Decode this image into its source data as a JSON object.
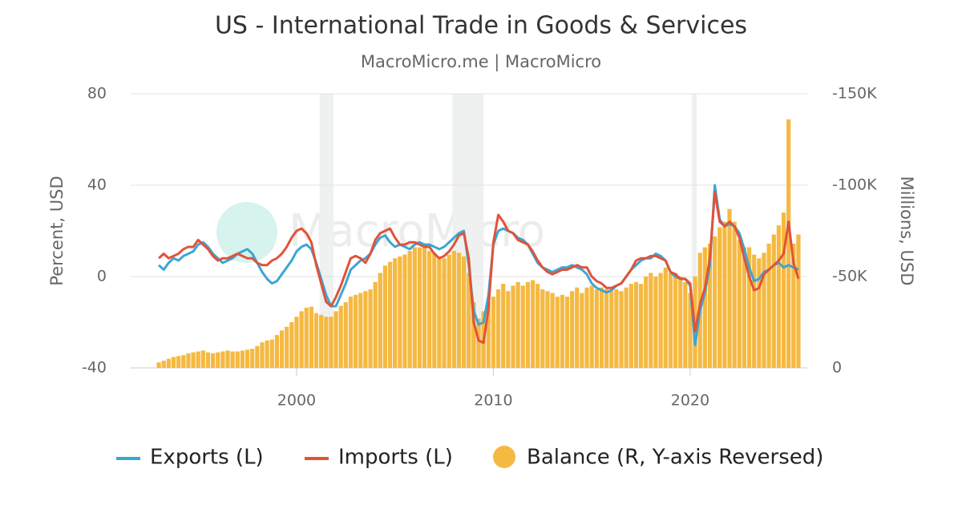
{
  "chart_data": {
    "type": "line",
    "title": "US - International Trade in Goods & Services",
    "subtitle": "MacroMicro.me | MacroMicro",
    "watermark": "MacroMicro",
    "y_label": "Percent, USD",
    "y2_label": "Millions, USD",
    "xlim": [
      1991.57,
      2025.95
    ],
    "xticks": [
      2000,
      2010,
      2020
    ],
    "ylim": [
      -40,
      80
    ],
    "yticks": [
      -40,
      0,
      40,
      80
    ],
    "y2lim": [
      -150000,
      0
    ],
    "y2_reversed": true,
    "y2ticks": [
      {
        "value": -150000,
        "label": "-150K"
      },
      {
        "value": -100000,
        "label": "-100K"
      },
      {
        "value": -50000,
        "label": "-50K"
      },
      0
    ],
    "grid": true,
    "shaded_periods": [
      [
        2001.17,
        2001.88
      ],
      [
        2007.92,
        2009.5
      ],
      [
        2020.08,
        2020.33
      ]
    ],
    "x": [
      1993,
      1993.25,
      1993.5,
      1993.75,
      1994,
      1994.25,
      1994.5,
      1994.75,
      1995,
      1995.25,
      1995.5,
      1995.75,
      1996,
      1996.25,
      1996.5,
      1996.75,
      1997,
      1997.25,
      1997.5,
      1997.75,
      1998,
      1998.25,
      1998.5,
      1998.75,
      1999,
      1999.25,
      1999.5,
      1999.75,
      2000,
      2000.25,
      2000.5,
      2000.75,
      2001,
      2001.25,
      2001.5,
      2001.75,
      2002,
      2002.25,
      2002.5,
      2002.75,
      2003,
      2003.25,
      2003.5,
      2003.75,
      2004,
      2004.25,
      2004.5,
      2004.75,
      2005,
      2005.25,
      2005.5,
      2005.75,
      2006,
      2006.25,
      2006.5,
      2006.75,
      2007,
      2007.25,
      2007.5,
      2007.75,
      2008,
      2008.25,
      2008.5,
      2008.75,
      2009,
      2009.25,
      2009.5,
      2009.75,
      2010,
      2010.25,
      2010.5,
      2010.75,
      2011,
      2011.25,
      2011.5,
      2011.75,
      2012,
      2012.25,
      2012.5,
      2012.75,
      2013,
      2013.25,
      2013.5,
      2013.75,
      2014,
      2014.25,
      2014.5,
      2014.75,
      2015,
      2015.25,
      2015.5,
      2015.75,
      2016,
      2016.25,
      2016.5,
      2016.75,
      2017,
      2017.25,
      2017.5,
      2017.75,
      2018,
      2018.25,
      2018.5,
      2018.75,
      2019,
      2019.25,
      2019.5,
      2019.75,
      2020,
      2020.25,
      2020.5,
      2020.75,
      2021,
      2021.25,
      2021.5,
      2021.75,
      2022,
      2022.25,
      2022.5,
      2022.75,
      2023,
      2023.25,
      2023.5,
      2023.75,
      2024,
      2024.25,
      2024.5,
      2024.75,
      2025,
      2025.25,
      2025.5
    ],
    "series": [
      {
        "name": "Balance (R, Y-axis Reversed)",
        "type": "bar",
        "axis": "y2",
        "color": "#f5b942",
        "values": [
          -3000,
          -4000,
          -5000,
          -6000,
          -6500,
          -7000,
          -8000,
          -8500,
          -9000,
          -9500,
          -8500,
          -8000,
          -8500,
          -9000,
          -9500,
          -9000,
          -9000,
          -9500,
          -10000,
          -10500,
          -12000,
          -14000,
          -15000,
          -15500,
          -18000,
          -20500,
          -22500,
          -25000,
          -28000,
          -31000,
          -33000,
          -33500,
          -30000,
          -29000,
          -28000,
          -28000,
          -31000,
          -34000,
          -36000,
          -39000,
          -40000,
          -41000,
          -42000,
          -43000,
          -47000,
          -52000,
          -56000,
          -58000,
          -60000,
          -61000,
          -62000,
          -64000,
          -66000,
          -66000,
          -67000,
          -64000,
          -63000,
          -61000,
          -60000,
          -62000,
          -64000,
          -63000,
          -61000,
          -52000,
          -36000,
          -27000,
          -31000,
          -36000,
          -39000,
          -43000,
          -46000,
          -42000,
          -45000,
          -47000,
          -45000,
          -47000,
          -48000,
          -46000,
          -43000,
          -42000,
          -41000,
          -39000,
          -40000,
          -39000,
          -42000,
          -44000,
          -41000,
          -44000,
          -45000,
          -43000,
          -44000,
          -43000,
          -42000,
          -43000,
          -42000,
          -44000,
          -46000,
          -47000,
          -46000,
          -50000,
          -52000,
          -50000,
          -52000,
          -55000,
          -52000,
          -52000,
          -50000,
          -47000,
          -41000,
          -50000,
          -63000,
          -66000,
          -68000,
          -72000,
          -77000,
          -80000,
          -87000,
          -80000,
          -70000,
          -66000,
          -66000,
          -62000,
          -60000,
          -63000,
          -68000,
          -73000,
          -78000,
          -85000,
          -136000,
          -68000,
          -73000
        ]
      },
      {
        "name": "Exports (L)",
        "type": "line",
        "color": "#3aa6d6",
        "values": [
          5,
          3,
          6,
          8,
          7,
          9,
          10,
          11,
          14,
          15,
          13,
          10,
          8,
          6,
          7,
          8,
          10,
          11,
          12,
          10,
          6,
          2,
          -1,
          -3,
          -2,
          1,
          4,
          7,
          11,
          13,
          14,
          12,
          6,
          -1,
          -8,
          -13,
          -13,
          -8,
          -3,
          3,
          5,
          7,
          8,
          10,
          14,
          17,
          18,
          15,
          13,
          14,
          13,
          12,
          14,
          15,
          14,
          14,
          13,
          12,
          13,
          15,
          17,
          19,
          20,
          5,
          -15,
          -21,
          -20,
          -8,
          14,
          20,
          21,
          20,
          19,
          17,
          16,
          14,
          10,
          6,
          4,
          3,
          2,
          3,
          4,
          4,
          5,
          4,
          3,
          1,
          -3,
          -5,
          -6,
          -7,
          -6,
          -4,
          -3,
          0,
          3,
          5,
          7,
          8,
          8,
          10,
          9,
          7,
          2,
          0,
          -1,
          -1,
          -4,
          -30,
          -15,
          -7,
          5,
          40,
          25,
          22,
          23,
          22,
          19,
          12,
          4,
          -2,
          -1,
          2,
          3,
          5,
          6,
          4,
          5,
          4,
          3
        ]
      },
      {
        "name": "Imports (L)",
        "type": "line",
        "color": "#e0533a",
        "values": [
          8,
          10,
          8,
          9,
          10,
          12,
          13,
          13,
          16,
          14,
          12,
          9,
          7,
          8,
          8,
          9,
          10,
          9,
          8,
          8,
          6,
          5,
          5,
          7,
          8,
          10,
          13,
          17,
          20,
          21,
          19,
          15,
          5,
          -3,
          -11,
          -13,
          -9,
          -4,
          2,
          8,
          9,
          8,
          6,
          10,
          16,
          19,
          20,
          21,
          17,
          14,
          14,
          15,
          15,
          14,
          13,
          13,
          10,
          8,
          9,
          11,
          14,
          18,
          19,
          8,
          -20,
          -28,
          -29,
          -14,
          15,
          27,
          24,
          20,
          19,
          16,
          15,
          14,
          11,
          7,
          4,
          2,
          1,
          2,
          3,
          3,
          4,
          5,
          4,
          4,
          0,
          -2,
          -3,
          -5,
          -5,
          -4,
          -3,
          0,
          3,
          7,
          8,
          8,
          9,
          9,
          8,
          7,
          2,
          1,
          -1,
          -1,
          -3,
          -24,
          -12,
          -5,
          8,
          37,
          24,
          22,
          24,
          22,
          17,
          8,
          0,
          -6,
          -5,
          1,
          3,
          5,
          7,
          10,
          24,
          6,
          -1
        ]
      }
    ]
  }
}
